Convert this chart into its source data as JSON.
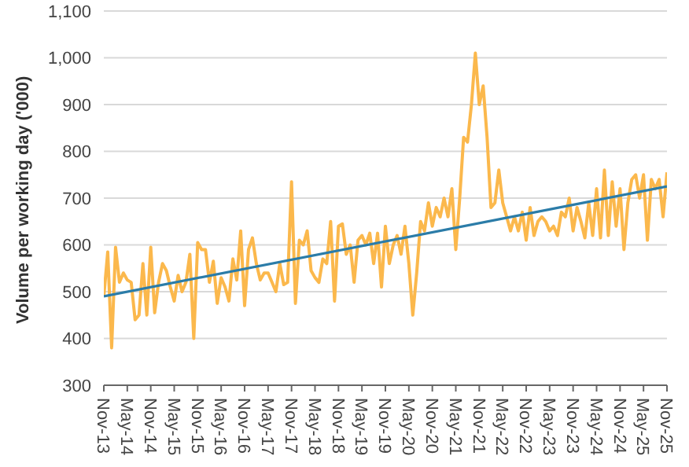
{
  "chart_data": {
    "type": "line",
    "ylabel": "Volume per working day ('000)",
    "categories": [
      "Nov-13",
      null,
      null,
      null,
      null,
      null,
      "May-14",
      null,
      null,
      null,
      null,
      null,
      "Nov-14",
      null,
      null,
      null,
      null,
      null,
      "May-15",
      null,
      null,
      null,
      null,
      null,
      "Nov-15",
      null,
      null,
      null,
      null,
      null,
      "May-16",
      null,
      null,
      null,
      null,
      null,
      "Nov-16",
      null,
      null,
      null,
      null,
      null,
      "May-17",
      null,
      null,
      null,
      null,
      null,
      "Nov-17",
      null,
      null,
      null,
      null,
      null,
      "May-18",
      null,
      null,
      null,
      null,
      null,
      "Nov-18",
      null,
      null,
      null,
      null,
      null,
      "May-19",
      null,
      null,
      null,
      null,
      null,
      "Nov-19",
      null,
      null,
      null,
      null,
      null,
      "May-20",
      null,
      null,
      null,
      null,
      null,
      "Nov-20",
      null,
      null,
      null,
      null,
      null,
      "May-21",
      null,
      null,
      null,
      null,
      null,
      "Nov-21",
      null,
      null,
      null,
      null,
      null,
      "May-22",
      null,
      null,
      null,
      null,
      null,
      "Nov-22",
      null,
      null,
      null,
      null,
      null,
      "May-23",
      null,
      null,
      null,
      null,
      null,
      "Nov-23",
      null,
      null,
      null,
      null,
      null,
      "May-24",
      null,
      null,
      null,
      null,
      null,
      "Nov-24",
      null,
      null,
      null,
      null,
      null,
      "May-25",
      null,
      null,
      null,
      null,
      null,
      "Nov-25"
    ],
    "series": [
      {
        "color": "#fbb84c",
        "values": [
          490,
          585,
          380,
          595,
          520,
          540,
          525,
          520,
          440,
          450,
          560,
          450,
          595,
          455,
          520,
          560,
          545,
          510,
          480,
          535,
          500,
          520,
          580,
          400,
          605,
          590,
          590,
          520,
          565,
          475,
          530,
          510,
          480,
          570,
          525,
          630,
          470,
          590,
          615,
          560,
          525,
          540,
          540,
          520,
          500,
          560,
          515,
          520,
          735,
          475,
          610,
          600,
          630,
          545,
          530,
          520,
          570,
          560,
          650,
          480,
          640,
          645,
          580,
          600,
          520,
          610,
          620,
          600,
          625,
          560,
          625,
          510,
          640,
          560,
          600,
          620,
          580,
          640,
          560,
          450,
          540,
          650,
          630,
          690,
          640,
          680,
          660,
          700,
          660,
          720,
          590,
          700,
          830,
          820,
          900,
          1010,
          900,
          940,
          830,
          680,
          690,
          760,
          690,
          660,
          630,
          660,
          630,
          670,
          610,
          680,
          620,
          650,
          660,
          650,
          630,
          640,
          620,
          670,
          660,
          700,
          630,
          680,
          650,
          615,
          690,
          620,
          720,
          615,
          760,
          620,
          735,
          640,
          720,
          590,
          690,
          740,
          750,
          700,
          750,
          610,
          740,
          720,
          740,
          660,
          755
        ]
      },
      {
        "type": "line",
        "color": "#2b7ca8",
        "values": [
          490,
          null,
          null,
          null,
          null,
          null,
          null,
          null,
          null,
          null,
          null,
          null,
          null,
          null,
          null,
          null,
          null,
          null,
          null,
          null,
          null,
          null,
          null,
          null,
          null,
          null,
          null,
          null,
          null,
          null,
          null,
          null,
          null,
          null,
          null,
          null,
          null,
          null,
          null,
          null,
          null,
          null,
          null,
          null,
          null,
          null,
          null,
          null,
          null,
          null,
          null,
          null,
          null,
          null,
          null,
          null,
          null,
          null,
          null,
          null,
          null,
          null,
          null,
          null,
          null,
          null,
          null,
          null,
          null,
          null,
          null,
          null,
          null,
          null,
          null,
          null,
          null,
          null,
          null,
          null,
          null,
          null,
          null,
          null,
          null,
          null,
          null,
          null,
          null,
          null,
          null,
          null,
          null,
          null,
          null,
          null,
          null,
          null,
          null,
          null,
          null,
          null,
          null,
          null,
          null,
          null,
          null,
          null,
          null,
          null,
          null,
          null,
          null,
          null,
          null,
          null,
          null,
          null,
          null,
          null,
          null,
          null,
          null,
          null,
          null,
          null,
          null,
          null,
          null,
          null,
          null,
          null,
          null,
          null,
          null,
          null,
          null,
          null,
          null,
          null,
          null,
          null,
          null,
          null,
          725
        ]
      }
    ],
    "ylim": [
      300,
      1100
    ],
    "yticks": [
      300,
      400,
      500,
      600,
      700,
      800,
      900,
      {
        "value": 1000,
        "label": "1,000"
      },
      {
        "value": 1100,
        "label": "1,100"
      }
    ],
    "grid": "y",
    "marker": "none",
    "line_style": "solid"
  }
}
